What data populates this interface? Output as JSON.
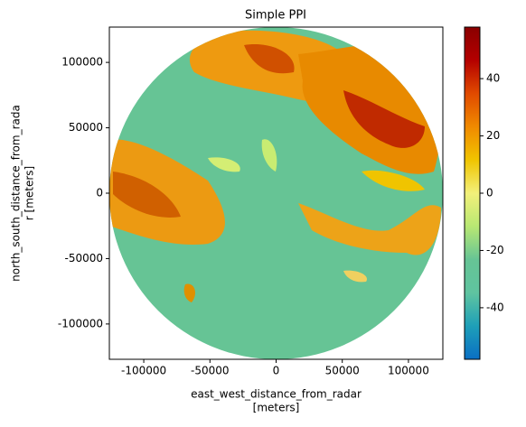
{
  "chart_data": {
    "type": "ppi",
    "title": "Simple PPI",
    "xlabel": [
      "east_west_distance_from_radar",
      "[meters]"
    ],
    "ylabel": [
      "north_south_distance_from_rada",
      "r [meters]"
    ],
    "xlim": [
      -126000,
      126000
    ],
    "ylim": [
      -127000,
      127000
    ],
    "xticks": [
      -100000,
      -50000,
      0,
      50000,
      100000
    ],
    "yticks": [
      -100000,
      -50000,
      0,
      50000,
      100000
    ],
    "clim": [
      -58,
      58
    ],
    "cticks": [
      -40,
      -20,
      0,
      20,
      40
    ],
    "colormap": [
      "#0a6fc4",
      "#1e9fb8",
      "#5fc4a0",
      "#66c495",
      "#b8e873",
      "#f2f07a",
      "#f0c400",
      "#f08a00",
      "#e04a00",
      "#b40000",
      "#8a0000"
    ],
    "background_color": "#66c495"
  }
}
